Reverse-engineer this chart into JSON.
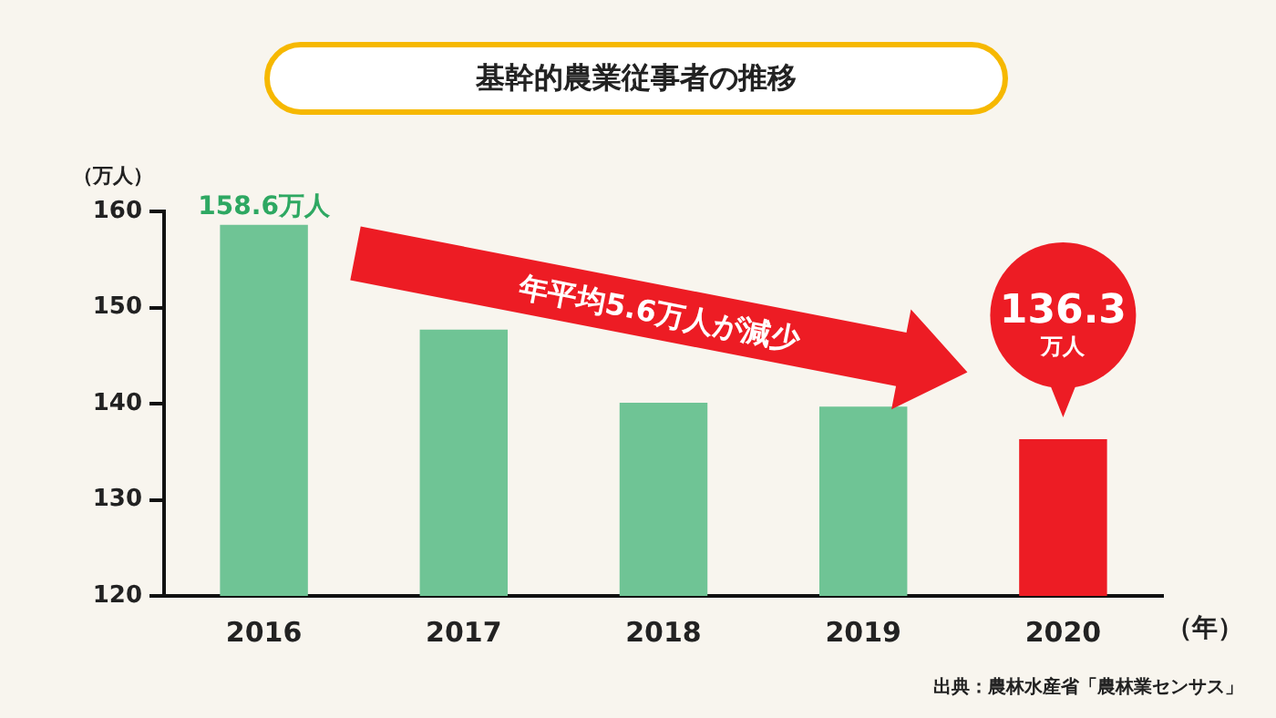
{
  "chart_data": {
    "type": "bar",
    "title": "基幹的農業従事者の推移",
    "ylabel": "（万人）",
    "xlabel": "（年）",
    "categories": [
      "2016",
      "2017",
      "2018",
      "2019",
      "2020"
    ],
    "values": [
      158.6,
      147.7,
      140.1,
      139.7,
      136.3
    ],
    "colors": [
      "#6fc495",
      "#6fc495",
      "#6fc495",
      "#6fc495",
      "#ed1c24"
    ],
    "value_labels": [
      "158.6万人",
      null,
      null,
      null,
      "136.3万人"
    ],
    "ylim": [
      120,
      160
    ],
    "yticks": [
      120,
      130,
      140,
      150,
      160
    ],
    "grid": false,
    "legend": false,
    "annotations": [
      {
        "text": "年平均5.6万人が減少"
      },
      {
        "text": "出典：農林水産省「農林業センサス」"
      }
    ]
  }
}
